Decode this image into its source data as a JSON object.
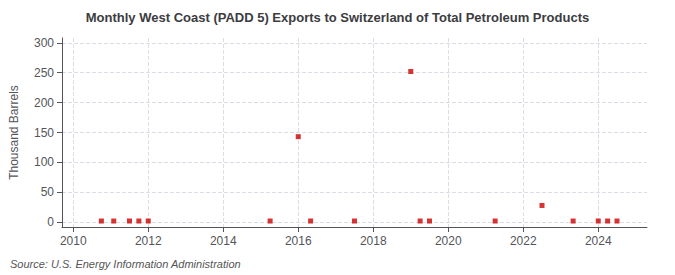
{
  "chart_data": {
    "type": "scatter",
    "title": "Monthly West Coast (PADD 5) Exports to Switzerland of Total Petroleum Products",
    "ylabel": "Thousand Barrels",
    "annotation": "Source: U.S. Energy Information Administration",
    "x": [
      2010.75,
      2011.08,
      2011.5,
      2011.75,
      2012.0,
      2015.25,
      2016.0,
      2016.33,
      2017.5,
      2019.0,
      2019.25,
      2019.5,
      2021.25,
      2022.5,
      2023.33,
      2024.0,
      2024.25,
      2024.5
    ],
    "values": [
      2,
      2,
      2,
      2,
      2,
      2,
      143,
      2,
      2,
      252,
      2,
      2,
      2,
      28,
      2,
      2,
      2,
      2
    ],
    "color": "#cc0000",
    "marker": "square",
    "xlim": [
      2009.7,
      2025.3
    ],
    "ylim": [
      -8,
      308
    ],
    "xticks": [
      2010,
      2012,
      2014,
      2016,
      2018,
      2020,
      2022,
      2024
    ],
    "yticks": [
      0,
      50,
      100,
      150,
      200,
      250,
      300
    ],
    "grid": true
  }
}
